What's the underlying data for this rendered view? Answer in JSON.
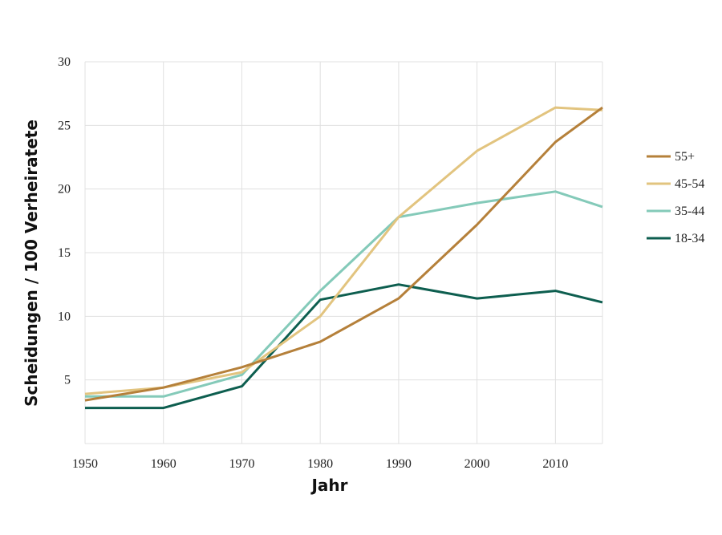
{
  "chart_data": {
    "type": "line",
    "title": "",
    "xlabel": "Jahr",
    "ylabel": "Scheidungen / 100 Verheiratete",
    "xlim": [
      1950,
      2016
    ],
    "ylim": [
      0,
      30
    ],
    "x_ticks": [
      1950,
      1960,
      1970,
      1980,
      1990,
      2000,
      2010
    ],
    "y_ticks": [
      5,
      10,
      15,
      20,
      25,
      30
    ],
    "grid": true,
    "legend_position": "right",
    "x": [
      1950,
      1960,
      1970,
      1980,
      1990,
      2000,
      2010,
      2016
    ],
    "series": [
      {
        "name": "55+",
        "color": "#b5803a",
        "values": [
          3.4,
          4.4,
          6.0,
          8.0,
          11.4,
          17.2,
          23.7,
          26.4
        ]
      },
      {
        "name": "45-54",
        "color": "#e2c47f",
        "values": [
          3.9,
          4.4,
          5.6,
          10.0,
          17.8,
          23.0,
          26.4,
          26.2
        ]
      },
      {
        "name": "35-44",
        "color": "#84cab9",
        "values": [
          3.7,
          3.7,
          5.4,
          12.0,
          17.8,
          18.9,
          19.8,
          18.6
        ]
      },
      {
        "name": "18-34",
        "color": "#0d5e4f",
        "values": [
          2.8,
          2.8,
          4.5,
          11.3,
          12.5,
          11.4,
          12.0,
          11.1
        ]
      }
    ]
  }
}
